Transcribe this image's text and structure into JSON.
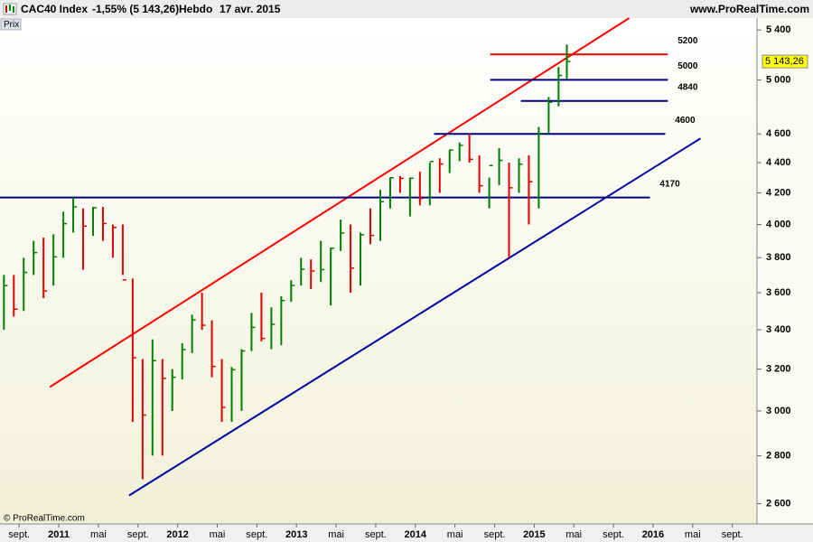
{
  "header": {
    "symbol": "CAC40 Index",
    "change": "-1,55% (5 143,26)",
    "period": "Hebdo",
    "date": "17 avr. 2015",
    "site": "www.ProRealTime.com"
  },
  "panel_label": "Prix",
  "copyright": "© ProRealTime.com",
  "chart_data": {
    "type": "ohlc",
    "log_scale": true,
    "up_color": "#008000",
    "down_color": "#e00000",
    "x": [
      "2010-07-15",
      "2010-08-15",
      "2010-09-15",
      "2010-10-15",
      "2010-11-15",
      "2010-12-15",
      "2011-01-15",
      "2011-02-15",
      "2011-03-15",
      "2011-04-15",
      "2011-05-15",
      "2011-06-15",
      "2011-07-15",
      "2011-08-15",
      "2011-09-15",
      "2011-10-15",
      "2011-11-15",
      "2011-12-15",
      "2012-01-15",
      "2012-02-15",
      "2012-03-15",
      "2012-04-15",
      "2012-05-15",
      "2012-06-15",
      "2012-07-15",
      "2012-08-15",
      "2012-09-15",
      "2012-10-15",
      "2012-11-15",
      "2012-12-15",
      "2013-01-15",
      "2013-02-15",
      "2013-03-15",
      "2013-04-15",
      "2013-05-15",
      "2013-06-15",
      "2013-07-15",
      "2013-08-15",
      "2013-09-15",
      "2013-10-15",
      "2013-11-15",
      "2013-12-15",
      "2014-01-15",
      "2014-02-15",
      "2014-03-15",
      "2014-04-15",
      "2014-05-15",
      "2014-06-15",
      "2014-07-15",
      "2014-08-15",
      "2014-09-15",
      "2014-10-15",
      "2014-11-15",
      "2014-12-15",
      "2015-01-15",
      "2015-02-15",
      "2015-03-15",
      "2015-04-10"
    ],
    "high": [
      3700,
      3700,
      3800,
      3900,
      3920,
      3940,
      4080,
      4170,
      4100,
      4110,
      4110,
      4000,
      4000,
      3680,
      3250,
      3350,
      3250,
      3200,
      3330,
      3480,
      3600,
      3450,
      3250,
      3210,
      3300,
      3490,
      3600,
      3520,
      3580,
      3670,
      3800,
      3790,
      3900,
      3860,
      4030,
      4000,
      3950,
      4100,
      4220,
      4300,
      4310,
      4300,
      4340,
      4400,
      4430,
      4490,
      4540,
      4600,
      4450,
      4300,
      4500,
      4400,
      4430,
      4450,
      4650,
      4870,
      5100,
      5280
    ],
    "low": [
      3400,
      3470,
      3500,
      3700,
      3570,
      3640,
      3800,
      3950,
      3730,
      3930,
      3900,
      3800,
      3700,
      2950,
      2700,
      2800,
      2800,
      3000,
      3150,
      3280,
      3400,
      3160,
      2950,
      2950,
      3000,
      3290,
      3340,
      3300,
      3320,
      3550,
      3640,
      3620,
      3660,
      3530,
      3840,
      3600,
      3640,
      3880,
      3900,
      4100,
      4200,
      4050,
      4120,
      4120,
      4200,
      4330,
      4410,
      4400,
      4200,
      4100,
      4250,
      3800,
      4200,
      4000,
      4100,
      4600,
      4800,
      5000
    ],
    "close": [
      3640,
      3510,
      3715,
      3830,
      3610,
      3805,
      4005,
      4110,
      3990,
      4105,
      4006,
      3982,
      3672,
      3256,
      2981,
      3242,
      3155,
      3160,
      3298,
      3452,
      3424,
      3213,
      3017,
      3197,
      3291,
      3413,
      3355,
      3429,
      3557,
      3641,
      3733,
      3723,
      3731,
      3856,
      3948,
      3739,
      3937,
      3933,
      4143,
      4299,
      4295,
      4296,
      4165,
      4408,
      4391,
      4487,
      4519,
      4423,
      4246,
      4381,
      4416,
      4233,
      4390,
      4273,
      4604,
      4830,
      5034,
      5143.26
    ],
    "last_price": {
      "value": 5143.26,
      "label": "5 143,26"
    },
    "levels": [
      {
        "value": 5200,
        "color": "#ff0000",
        "x": [
          "2014-08-18",
          "2016-02-16"
        ]
      },
      {
        "value": 5000,
        "color": "#000080",
        "x": [
          "2014-08-18",
          "2016-02-16"
        ]
      },
      {
        "value": 4840,
        "color": "#000080",
        "x": [
          "2014-11-21",
          "2016-02-16"
        ]
      },
      {
        "value": 4600,
        "color": "#000080",
        "x": [
          "2014-02-28",
          "2016-02-08"
        ]
      },
      {
        "value": 4170,
        "color": "#000080",
        "x": [
          "2010-07-03",
          "2015-12-22"
        ]
      }
    ],
    "trendlines": [
      {
        "color": "#ff0000",
        "x": [
          "2010-12-04",
          "2015-10-19"
        ],
        "values": [
          3113,
          5500
        ]
      },
      {
        "color": "#0000a0",
        "x": [
          "2011-08-04",
          "2016-05-25"
        ],
        "values": [
          2633,
          4568
        ]
      }
    ],
    "xlim": [
      "2010-07-03",
      "2016-11-16"
    ],
    "xticks": [
      {
        "value": "2010-09-01",
        "label": "sept."
      },
      {
        "value": "2011-01-01",
        "label": "2011"
      },
      {
        "value": "2011-05-01",
        "label": "mai"
      },
      {
        "value": "2011-09-01",
        "label": "sept."
      },
      {
        "value": "2012-01-01",
        "label": "2012"
      },
      {
        "value": "2012-05-01",
        "label": "mai"
      },
      {
        "value": "2012-09-01",
        "label": "sept."
      },
      {
        "value": "2013-01-01",
        "label": "2013"
      },
      {
        "value": "2013-05-01",
        "label": "mai"
      },
      {
        "value": "2013-09-01",
        "label": "sept."
      },
      {
        "value": "2014-01-01",
        "label": "2014"
      },
      {
        "value": "2014-05-01",
        "label": "mai"
      },
      {
        "value": "2014-09-01",
        "label": "sept."
      },
      {
        "value": "2015-01-01",
        "label": "2015"
      },
      {
        "value": "2015-05-01",
        "label": "mai"
      },
      {
        "value": "2015-09-01",
        "label": "sept."
      },
      {
        "value": "2016-01-01",
        "label": "2016"
      },
      {
        "value": "2016-05-01",
        "label": "mai"
      },
      {
        "value": "2016-09-01",
        "label": "sept."
      }
    ],
    "ylim": [
      2520,
      5500
    ],
    "yticks": [
      {
        "value": 2600,
        "label": "2 600"
      },
      {
        "value": 2800,
        "label": "2 800"
      },
      {
        "value": 3000,
        "label": "3 000"
      },
      {
        "value": 3200,
        "label": "3 200"
      },
      {
        "value": 3400,
        "label": "3 400"
      },
      {
        "value": 3600,
        "label": "3 600"
      },
      {
        "value": 3800,
        "label": "3 800"
      },
      {
        "value": 4000,
        "label": "4 000"
      },
      {
        "value": 4200,
        "label": "4 200"
      },
      {
        "value": 4400,
        "label": "4 400"
      },
      {
        "value": 4600,
        "label": "4 600"
      },
      {
        "value": 5000,
        "label": "5 000"
      },
      {
        "value": 5400,
        "label": "5 400"
      }
    ]
  }
}
